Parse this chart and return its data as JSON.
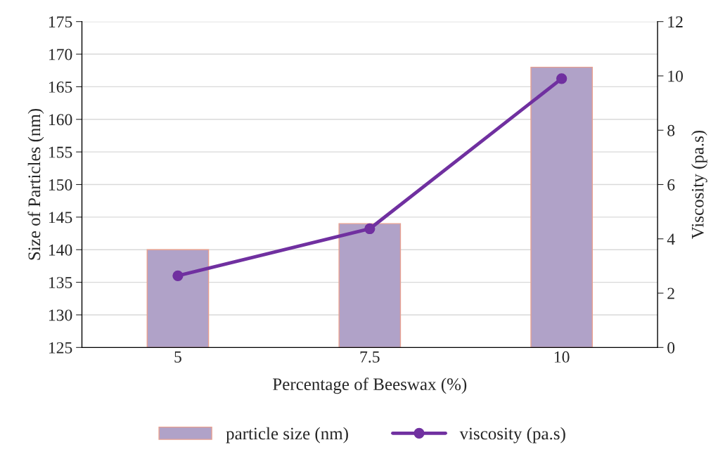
{
  "chart_data": {
    "type": "bar",
    "categories": [
      "5",
      "7.5",
      "10"
    ],
    "xlabel": "Percentage of Beeswax (%)",
    "ylabel": "Size of Particles (nm)",
    "y2label": "Viscosity (pa.s)",
    "series": [
      {
        "name": "particle size (nm)",
        "color": "#b0a2c8",
        "values": [
          140,
          144,
          168
        ]
      },
      {
        "name": "viscosity (pa.s)",
        "type": "line",
        "axis": "y2",
        "color": "#7030a0",
        "marker": "circle",
        "values": [
          2.64,
          4.37,
          9.9
        ]
      }
    ],
    "ylim": [
      125,
      175
    ],
    "yticks": [
      125,
      130,
      135,
      140,
      145,
      150,
      155,
      160,
      165,
      170,
      175
    ],
    "y2lim": [
      0,
      12
    ],
    "y2ticks": [
      0,
      2,
      4,
      6,
      8,
      10,
      12
    ],
    "grid": "y",
    "legend": "bottom"
  }
}
